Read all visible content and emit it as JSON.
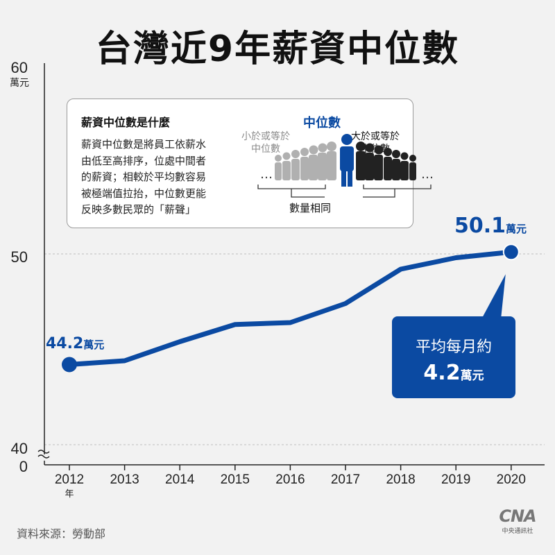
{
  "title": "台灣近9年薪資中位數",
  "source": "資料來源：勞動部",
  "logo": {
    "mark": "CNA",
    "name": "中央通訊社"
  },
  "colors": {
    "accent": "#0b4aa2",
    "grid": "#bdbdbd",
    "axis": "#222222",
    "background": "#f2f2f2"
  },
  "info": {
    "title": "薪資中位數是什麼",
    "body_lines": [
      "薪資中位數是將員工依薪水",
      "由低至高排序，位處中間者",
      "的薪資；相較於平均數容易",
      "被極端值拉抬，中位數更能",
      "反映多數民眾的「薪聲」"
    ],
    "median": "中位數",
    "less": [
      "小於或等於",
      "中位數"
    ],
    "more": [
      "大於或等於",
      "中位數"
    ],
    "equal": "數量相同"
  },
  "callout": {
    "line1": "平均每月約",
    "value": "4.2",
    "unit": "萬元"
  },
  "labels": {
    "end": {
      "value": "50.1",
      "unit": "萬元"
    },
    "start": {
      "value": "44.2",
      "unit": "萬元"
    }
  },
  "chart_data": {
    "type": "line",
    "title": "台灣近9年薪資中位數",
    "x": [
      "2012",
      "2013",
      "2014",
      "2015",
      "2016",
      "2017",
      "2018",
      "2019",
      "2020"
    ],
    "x_unit": "年",
    "series": [
      {
        "values": [
          44.2,
          44.4,
          45.4,
          46.3,
          46.4,
          47.4,
          49.2,
          49.8,
          50.1
        ]
      }
    ],
    "ylim": [
      40,
      60
    ],
    "y_axis_break": true,
    "y_ticks": [
      "60",
      "50",
      "40",
      "0"
    ],
    "y_unit": "萬元",
    "grid": "dashed horizontal at 50 and 40"
  }
}
